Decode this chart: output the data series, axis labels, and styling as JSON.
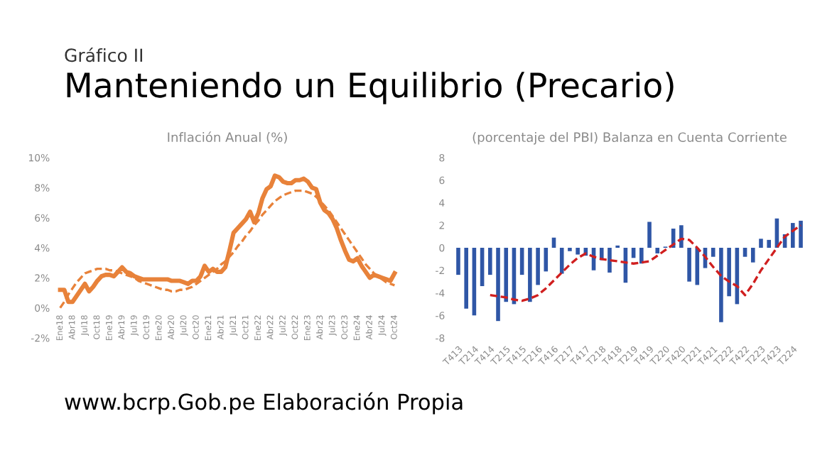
{
  "chart_data": [
    {
      "type": "line",
      "title": "Inflación Anual (%)",
      "annotations": [
        "Gráfico II",
        "Manteniendo un Equilibrio (Precario)",
        "www.bcrp.Gob.pe Elaboración Propia"
      ],
      "categories": [
        "Ene18",
        null,
        null,
        "Abr18",
        null,
        null,
        "Jul18",
        null,
        null,
        "Oct18",
        null,
        null,
        "Ene19",
        null,
        null,
        "Abr19",
        null,
        null,
        "Jul19",
        null,
        null,
        "Oct19",
        null,
        null,
        "Ene20",
        null,
        null,
        "Abr20",
        null,
        null,
        "Jul20",
        null,
        null,
        "Oct20",
        null,
        null,
        "Ene21",
        null,
        null,
        "Abr21",
        null,
        null,
        "Jul21",
        null,
        null,
        "Oct21",
        null,
        null,
        "Ene22",
        null,
        null,
        "Abr22",
        null,
        null,
        "Jul22",
        null,
        null,
        "Oct22",
        null,
        null,
        "Ene23",
        null,
        null,
        "Abr23",
        null,
        null,
        "Jul23",
        null,
        null,
        "Oct23",
        null,
        null,
        "Ene24",
        null,
        null,
        "Abr24",
        null,
        null,
        "Jul24",
        null,
        null,
        "Oct24"
      ],
      "series": [
        {
          "color": "#e8823a",
          "line_style": "solid",
          "values": [
            1.2,
            1.2,
            0.4,
            0.4,
            0.8,
            1.2,
            1.6,
            1.1,
            1.4,
            1.8,
            2.1,
            2.2,
            2.2,
            2.1,
            2.4,
            2.7,
            2.4,
            2.3,
            2.1,
            2.0,
            1.9,
            1.9,
            1.9,
            1.9,
            1.9,
            1.9,
            1.9,
            1.8,
            1.8,
            1.8,
            1.7,
            1.6,
            1.8,
            1.8,
            2.1,
            2.8,
            2.4,
            2.6,
            2.4,
            2.4,
            2.7,
            3.8,
            5.0,
            5.3,
            5.6,
            5.9,
            6.4,
            5.7,
            6.3,
            7.3,
            7.9,
            8.1,
            8.8,
            8.7,
            8.4,
            8.3,
            8.3,
            8.5,
            8.5,
            8.6,
            8.4,
            8.0,
            7.9,
            7.0,
            6.5,
            6.3,
            5.9,
            5.3,
            4.5,
            3.8,
            3.2,
            3.1,
            3.3,
            2.8,
            2.4,
            2.0,
            2.2,
            2.1,
            2.0,
            1.9,
            1.8,
            2.3
          ]
        },
        {
          "color": "#e8823a",
          "line_style": "dashed",
          "values": [
            0.0,
            0.4,
            0.9,
            1.3,
            1.7,
            2.0,
            2.3,
            2.4,
            2.5,
            2.6,
            2.6,
            2.6,
            2.5,
            2.5,
            2.4,
            2.3,
            2.2,
            2.1,
            2.0,
            1.8,
            1.7,
            1.6,
            1.5,
            1.4,
            1.3,
            1.2,
            1.2,
            1.1,
            1.1,
            1.2,
            1.2,
            1.3,
            1.4,
            1.6,
            1.8,
            2.0,
            2.2,
            2.4,
            2.6,
            2.9,
            3.1,
            3.4,
            3.7,
            4.1,
            4.4,
            4.8,
            5.1,
            5.5,
            5.8,
            6.2,
            6.5,
            6.8,
            7.1,
            7.3,
            7.5,
            7.6,
            7.7,
            7.8,
            7.8,
            7.8,
            7.7,
            7.6,
            7.4,
            7.1,
            6.8,
            6.5,
            6.1,
            5.7,
            5.3,
            4.9,
            4.5,
            4.1,
            3.7,
            3.3,
            2.9,
            2.6,
            2.3,
            2.1,
            1.9,
            1.7,
            1.6,
            1.5
          ]
        }
      ],
      "ylim": [
        -2,
        10
      ],
      "yticks": [
        {
          "value": -2,
          "label": "-2%"
        },
        {
          "value": 0,
          "label": "0%"
        },
        {
          "value": 2,
          "label": "2%"
        },
        {
          "value": 4,
          "label": "4%"
        },
        {
          "value": 6,
          "label": "6%"
        },
        {
          "value": 8,
          "label": "8%"
        },
        {
          "value": 10,
          "label": "10%"
        }
      ],
      "grid": false,
      "legend": false
    },
    {
      "type": "bar",
      "title": "(porcentaje del PBI) Balanza en Cuenta Corriente",
      "categories": [
        "T413",
        null,
        "T214",
        null,
        "T414",
        null,
        "T215",
        null,
        "T415",
        null,
        "T216",
        null,
        "T416",
        null,
        "T217",
        null,
        "T417",
        null,
        "T218",
        null,
        "T418",
        null,
        "T219",
        null,
        "T419",
        null,
        "T220",
        null,
        "T420",
        null,
        "T221",
        null,
        "T421",
        null,
        "T222",
        null,
        "T422",
        null,
        "T223",
        null,
        "T423",
        null,
        "T224",
        null
      ],
      "series": [
        {
          "type": "bar",
          "color": "#2f56a6",
          "values": [
            -2.4,
            -5.4,
            -6.0,
            -3.4,
            -2.4,
            -6.5,
            -4.8,
            -5.0,
            -2.4,
            -4.8,
            -3.3,
            -2.1,
            0.9,
            -2.3,
            -0.3,
            -0.6,
            -0.7,
            -2.0,
            -1.1,
            -2.2,
            0.2,
            -3.1,
            -0.9,
            -1.4,
            2.3,
            -0.5,
            0.1,
            1.7,
            2.0,
            -3.0,
            -3.3,
            -1.8,
            -0.8,
            -6.6,
            -4.3,
            -5.0,
            -0.8,
            -1.3,
            0.8,
            0.7,
            2.6,
            1.2,
            2.2,
            2.4
          ]
        },
        {
          "type": "line",
          "color": "#d01f1f",
          "line_style": "dashed",
          "values": [
            null,
            null,
            null,
            null,
            -4.2,
            -4.3,
            -4.4,
            -4.6,
            -4.7,
            -4.5,
            -4.2,
            -3.6,
            -2.9,
            -2.2,
            -1.5,
            -0.9,
            -0.5,
            -0.8,
            -1.0,
            -1.1,
            -1.2,
            -1.3,
            -1.4,
            -1.3,
            -1.2,
            -0.7,
            -0.2,
            0.3,
            0.8,
            0.7,
            0.0,
            -0.8,
            -1.7,
            -2.5,
            -3.0,
            -3.4,
            -4.2,
            -3.2,
            -2.0,
            -1.0,
            0.0,
            1.0,
            1.5,
            2.0
          ]
        }
      ],
      "ylim": [
        -8,
        8
      ],
      "yticks": [
        -8,
        -6,
        -4,
        -2,
        0,
        2,
        4,
        6,
        8
      ],
      "grid": false,
      "legend": false
    }
  ]
}
